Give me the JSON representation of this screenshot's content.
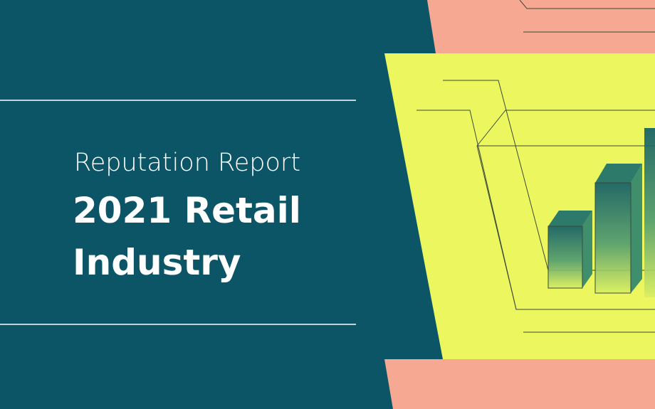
{
  "header": {
    "subtitle": "Reputation Report",
    "title_lines": [
      "2021 Retail",
      "Industry"
    ]
  }
}
